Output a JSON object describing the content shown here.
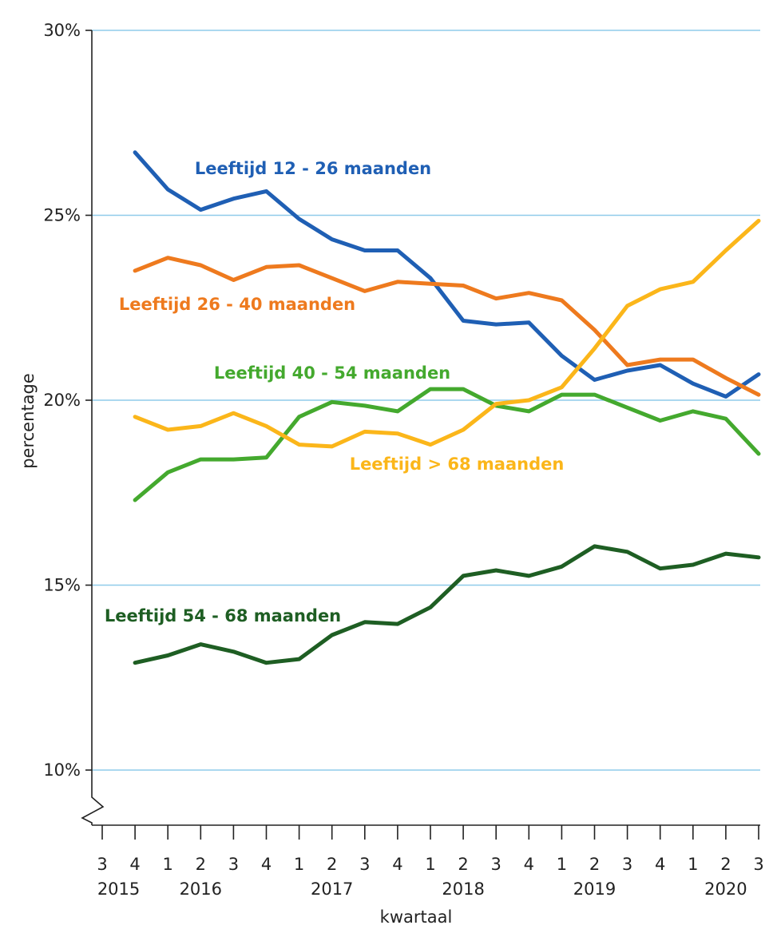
{
  "chart_data": {
    "type": "line",
    "xlabel": "kwartaal",
    "ylabel": "percentage",
    "ylim": [
      10,
      30
    ],
    "y_ticks": [
      "10%",
      "15%",
      "20%",
      "25%",
      "30%"
    ],
    "axis_break": true,
    "grid": "horizontal",
    "quarter_labels": [
      "3",
      "4",
      "1",
      "2",
      "3",
      "4",
      "1",
      "2",
      "3",
      "4",
      "1",
      "2",
      "3",
      "4",
      "1",
      "2",
      "3",
      "4",
      "1",
      "2",
      "3"
    ],
    "year_labels": [
      "2015",
      "2016",
      "2017",
      "2018",
      "2019",
      "2020"
    ],
    "x": [
      "2015 Q3",
      "2015 Q4",
      "2016 Q1",
      "2016 Q2",
      "2016 Q3",
      "2016 Q4",
      "2017 Q1",
      "2017 Q2",
      "2017 Q3",
      "2017 Q4",
      "2018 Q1",
      "2018 Q2",
      "2018 Q3",
      "2018 Q4",
      "2019 Q1",
      "2019 Q2",
      "2019 Q3",
      "2019 Q4",
      "2020 Q1",
      "2020 Q2",
      "2020 Q3"
    ],
    "series": [
      {
        "name": "Leeftijd 12 - 26 maanden",
        "color": "#1f5fb4",
        "values": [
          null,
          26.7,
          25.7,
          25.15,
          25.45,
          25.65,
          24.9,
          24.35,
          24.05,
          24.05,
          23.3,
          22.15,
          22.05,
          22.1,
          21.2,
          20.55,
          20.8,
          20.95,
          20.45,
          20.1,
          20.7
        ]
      },
      {
        "name": "Leeftijd 26 - 40 maanden",
        "color": "#ee7a1e",
        "values": [
          null,
          23.5,
          23.85,
          23.65,
          23.25,
          23.6,
          23.65,
          23.3,
          22.95,
          23.2,
          23.15,
          23.1,
          22.75,
          22.9,
          22.7,
          21.9,
          20.95,
          21.1,
          21.1,
          20.6,
          20.15
        ]
      },
      {
        "name": "Leeftijd 40 - 54 maanden",
        "color": "#44a92e",
        "values": [
          null,
          17.3,
          18.05,
          18.4,
          18.4,
          18.45,
          19.55,
          19.95,
          19.85,
          19.7,
          20.3,
          20.3,
          19.85,
          19.7,
          20.15,
          20.15,
          19.8,
          19.45,
          19.7,
          19.5,
          18.55
        ]
      },
      {
        "name": "Leeftijd > 68 maanden",
        "color": "#fbb61a",
        "values": [
          null,
          19.55,
          19.2,
          19.3,
          19.65,
          19.3,
          18.8,
          18.75,
          19.15,
          19.1,
          18.8,
          19.2,
          19.9,
          20.0,
          20.35,
          21.4,
          22.55,
          23.0,
          23.2,
          24.05,
          24.85
        ]
      },
      {
        "name": "Leeftijd 54 - 68 maanden",
        "color": "#1e5e23",
        "values": [
          null,
          12.9,
          13.1,
          13.4,
          13.2,
          12.9,
          13.0,
          13.65,
          14.0,
          13.95,
          14.4,
          15.25,
          15.4,
          15.25,
          15.5,
          16.05,
          15.9,
          15.45,
          15.55,
          15.85,
          15.75
        ]
      }
    ]
  }
}
